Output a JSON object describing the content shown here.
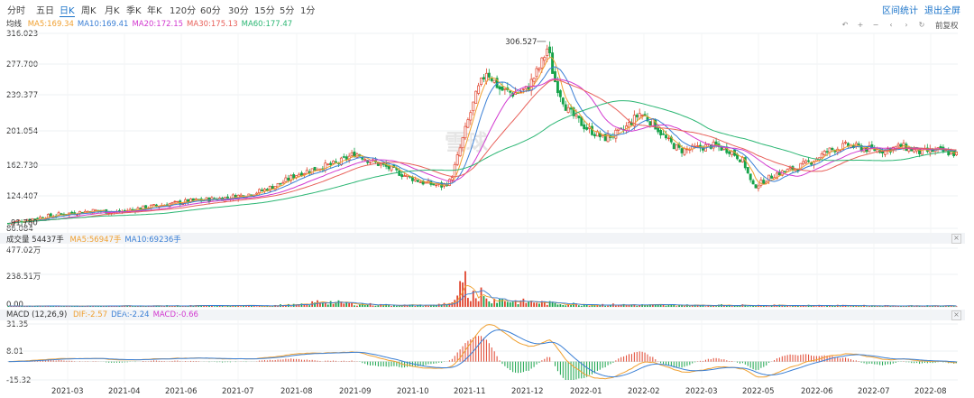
{
  "periods": [
    "分时",
    "五日",
    "日K",
    "周K",
    "月K",
    "季K",
    "年K",
    "120分",
    "60分",
    "30分",
    "15分",
    "5分",
    "1分"
  ],
  "active_period": "日K",
  "top_links": {
    "stats": "区间统计",
    "exit_fullscreen": "退出全屏"
  },
  "toolbar": {
    "icons": [
      "undo-icon",
      "zoom-in-icon",
      "zoom-out-icon",
      "scroll-left-icon",
      "scroll-right-icon",
      "reset-icon"
    ],
    "adjust_label": "前复权"
  },
  "watermark": "雪球",
  "price_panel": {
    "label": "均线",
    "ma": [
      {
        "name": "MA5",
        "value": "169.34",
        "color": "#f0a030"
      },
      {
        "name": "MA10",
        "value": "169.41",
        "color": "#3a7fd5"
      },
      {
        "name": "MA20",
        "value": "172.15",
        "color": "#d23ad0"
      },
      {
        "name": "MA30",
        "value": "175.13",
        "color": "#e8605a"
      },
      {
        "name": "MA60",
        "value": "177.47",
        "color": "#2bb673"
      }
    ],
    "y_ticks": [
      "316.023",
      "277.700",
      "239.377",
      "201.054",
      "162.730",
      "124.407",
      "86.084"
    ],
    "max_label": "306.527",
    "min_label": "91.780"
  },
  "volume_panel": {
    "label": "成交量 54437手",
    "ma": [
      {
        "name": "MA5",
        "value": "56947手",
        "color": "#f0a030"
      },
      {
        "name": "MA10",
        "value": "69236手",
        "color": "#3a7fd5"
      }
    ],
    "y_ticks": [
      "477.02万",
      "238.51万",
      "0.00"
    ]
  },
  "macd_panel": {
    "label": "MACD (12,26,9)",
    "values": [
      {
        "name": "DIF",
        "value": "-2.57",
        "color": "#f0a030"
      },
      {
        "name": "DEA",
        "value": "-2.24",
        "color": "#3a7fd5"
      },
      {
        "name": "MACD",
        "value": "-0.66",
        "color": "#d23ad0"
      }
    ],
    "y_ticks": [
      "31.35",
      "8.01",
      "-15.32"
    ]
  },
  "x_axis": [
    "2021-03",
    "2021-04",
    "2021-06",
    "2021-07",
    "2021-08",
    "2021-09",
    "2021-10",
    "2021-11",
    "2021-12",
    "2022-01",
    "2022-02",
    "2022-03",
    "2022-05",
    "2022-06",
    "2022-07",
    "2022-08"
  ],
  "colors": {
    "up": "#e0442e",
    "down": "#16a34a",
    "accent": "#1a73c9"
  },
  "chart_data": {
    "type": "candlestick",
    "price_anchors": [
      [
        0,
        92
      ],
      [
        30,
        98
      ],
      [
        60,
        103
      ],
      [
        95,
        107
      ],
      [
        120,
        105
      ],
      [
        160,
        112
      ],
      [
        200,
        118
      ],
      [
        240,
        122
      ],
      [
        265,
        126
      ],
      [
        280,
        130
      ],
      [
        300,
        138
      ],
      [
        320,
        150
      ],
      [
        345,
        158
      ],
      [
        365,
        163
      ],
      [
        385,
        175
      ],
      [
        400,
        166
      ],
      [
        420,
        158
      ],
      [
        440,
        148
      ],
      [
        460,
        140
      ],
      [
        480,
        136
      ],
      [
        490,
        142
      ],
      [
        500,
        178
      ],
      [
        510,
        215
      ],
      [
        520,
        248
      ],
      [
        530,
        272
      ],
      [
        545,
        250
      ],
      [
        560,
        245
      ],
      [
        575,
        250
      ],
      [
        590,
        278
      ],
      [
        598,
        300
      ],
      [
        605,
        262
      ],
      [
        620,
        225
      ],
      [
        640,
        205
      ],
      [
        660,
        192
      ],
      [
        680,
        200
      ],
      [
        700,
        222
      ],
      [
        715,
        210
      ],
      [
        730,
        190
      ],
      [
        745,
        178
      ],
      [
        760,
        180
      ],
      [
        780,
        184
      ],
      [
        800,
        178
      ],
      [
        815,
        165
      ],
      [
        825,
        135
      ],
      [
        835,
        140
      ],
      [
        850,
        150
      ],
      [
        870,
        156
      ],
      [
        890,
        165
      ],
      [
        910,
        178
      ],
      [
        930,
        184
      ],
      [
        950,
        180
      ],
      [
        970,
        178
      ],
      [
        990,
        183
      ],
      [
        1010,
        176
      ],
      [
        1030,
        178
      ],
      [
        1050,
        174
      ],
      [
        1062,
        169
      ]
    ],
    "volume_anchors": [
      [
        0,
        6
      ],
      [
        280,
        10
      ],
      [
        330,
        18
      ],
      [
        345,
        45
      ],
      [
        380,
        25
      ],
      [
        420,
        15
      ],
      [
        470,
        12
      ],
      [
        495,
        40
      ],
      [
        505,
        130
      ],
      [
        515,
        95
      ],
      [
        525,
        75
      ],
      [
        540,
        60
      ],
      [
        560,
        45
      ],
      [
        580,
        40
      ],
      [
        600,
        30
      ],
      [
        640,
        20
      ],
      [
        700,
        15
      ],
      [
        760,
        13
      ],
      [
        800,
        14
      ],
      [
        850,
        12
      ],
      [
        900,
        11
      ],
      [
        950,
        10
      ],
      [
        1000,
        9
      ],
      [
        1062,
        7
      ]
    ],
    "volume_max": 477.02,
    "volume_unit": "万",
    "y_range": [
      86.084,
      316.023
    ],
    "macd_range": [
      -15.32,
      31.35
    ],
    "max_point": 306.527,
    "min_point": 91.78
  }
}
